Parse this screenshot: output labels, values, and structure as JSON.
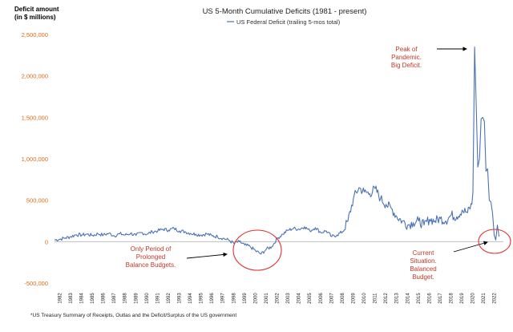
{
  "chart_data": {
    "type": "line",
    "title": "US 5-Month Cumulative Deficits (1981 - present)",
    "ylabel_lines": [
      "Deficit amount",
      "(in $ millions)"
    ],
    "legend_label": "US Federal Deficit (trailing 5-mos total)",
    "footnote": "*US Treasury Summary of Receipts, Outlas and the Deficit/Surplus of the US government",
    "ylim": [
      -500000,
      2500000
    ],
    "yticks": [
      {
        "value": -500000,
        "label": "-500,000"
      },
      {
        "value": 0,
        "label": "0"
      },
      {
        "value": 500000,
        "label": "500,000"
      },
      {
        "value": 1000000,
        "label": "1,000,000"
      },
      {
        "value": 1500000,
        "label": "1,500,000"
      },
      {
        "value": 2000000,
        "label": "2,000,000"
      },
      {
        "value": 2500000,
        "label": "2,500,000"
      }
    ],
    "xlim": [
      1981.5,
      2022.8
    ],
    "xticks": [
      1982,
      1983,
      1984,
      1985,
      1986,
      1987,
      1988,
      1989,
      1990,
      1991,
      1992,
      1993,
      1994,
      1995,
      1996,
      1997,
      1998,
      1999,
      2000,
      2001,
      2002,
      2003,
      2004,
      2005,
      2006,
      2007,
      2008,
      2009,
      2010,
      2011,
      2012,
      2013,
      2014,
      2015,
      2016,
      2017,
      2018,
      2019,
      2020,
      2021,
      2022
    ],
    "series": [
      {
        "name": "US Federal Deficit (trailing 5-mos total)",
        "color": "#4a73b5",
        "x": [
          1981.5,
          1982,
          1982.5,
          1983,
          1983.5,
          1984,
          1984.5,
          1985,
          1985.5,
          1986,
          1986.5,
          1987,
          1987.5,
          1988,
          1988.5,
          1989,
          1989.5,
          1990,
          1990.5,
          1991,
          1991.5,
          1992,
          1992.5,
          1993,
          1993.5,
          1994,
          1994.5,
          1995,
          1995.5,
          1996,
          1996.5,
          1997,
          1997.5,
          1998,
          1998.5,
          1999,
          1999.5,
          2000,
          2000.5,
          2001,
          2001.5,
          2002,
          2002.5,
          2003,
          2003.5,
          2004,
          2004.5,
          2005,
          2005.5,
          2006,
          2006.5,
          2007,
          2007.5,
          2008,
          2008.5,
          2009,
          2009.5,
          2010,
          2010.5,
          2011,
          2011.5,
          2012,
          2012.5,
          2013,
          2013.5,
          2014,
          2014.5,
          2015,
          2015.5,
          2016,
          2016.5,
          2017,
          2017.5,
          2018,
          2018.5,
          2019,
          2019.5,
          2019.9,
          2020.0,
          2020.15,
          2020.3,
          2020.45,
          2020.6,
          2020.75,
          2020.9,
          2021.05,
          2021.2,
          2021.35,
          2021.5,
          2021.65,
          2021.8,
          2021.95,
          2022.1,
          2022.25,
          2022.4
        ],
        "values": [
          20000,
          30000,
          45000,
          60000,
          85000,
          80000,
          90000,
          75000,
          95000,
          80000,
          100000,
          70000,
          95000,
          80000,
          100000,
          75000,
          110000,
          90000,
          120000,
          130000,
          150000,
          140000,
          160000,
          130000,
          120000,
          100000,
          90000,
          80000,
          95000,
          70000,
          60000,
          40000,
          20000,
          -20000,
          0,
          -40000,
          -60000,
          -110000,
          -150000,
          -90000,
          -60000,
          40000,
          90000,
          140000,
          160000,
          150000,
          180000,
          130000,
          170000,
          110000,
          130000,
          60000,
          80000,
          120000,
          250000,
          520000,
          650000,
          600000,
          580000,
          640000,
          520000,
          450000,
          400000,
          300000,
          250000,
          200000,
          230000,
          250000,
          200000,
          270000,
          250000,
          280000,
          250000,
          320000,
          300000,
          380000,
          350000,
          450000,
          600000,
          2350000,
          1650000,
          900000,
          1000000,
          1480000,
          1500000,
          1450000,
          850000,
          880000,
          500000,
          480000,
          350000,
          80000,
          20000,
          200000,
          60000
        ]
      }
    ],
    "annotations": [
      {
        "id": "peak",
        "lines": [
          "Peak of",
          "Pandemic.",
          "Big Deficit."
        ]
      },
      {
        "id": "balanced-period",
        "lines": [
          "Only Period of",
          "Prolonged",
          "Balance Budgets."
        ]
      },
      {
        "id": "current",
        "lines": [
          "Current",
          "Situation.",
          "Balanced",
          "Budget."
        ]
      }
    ]
  }
}
